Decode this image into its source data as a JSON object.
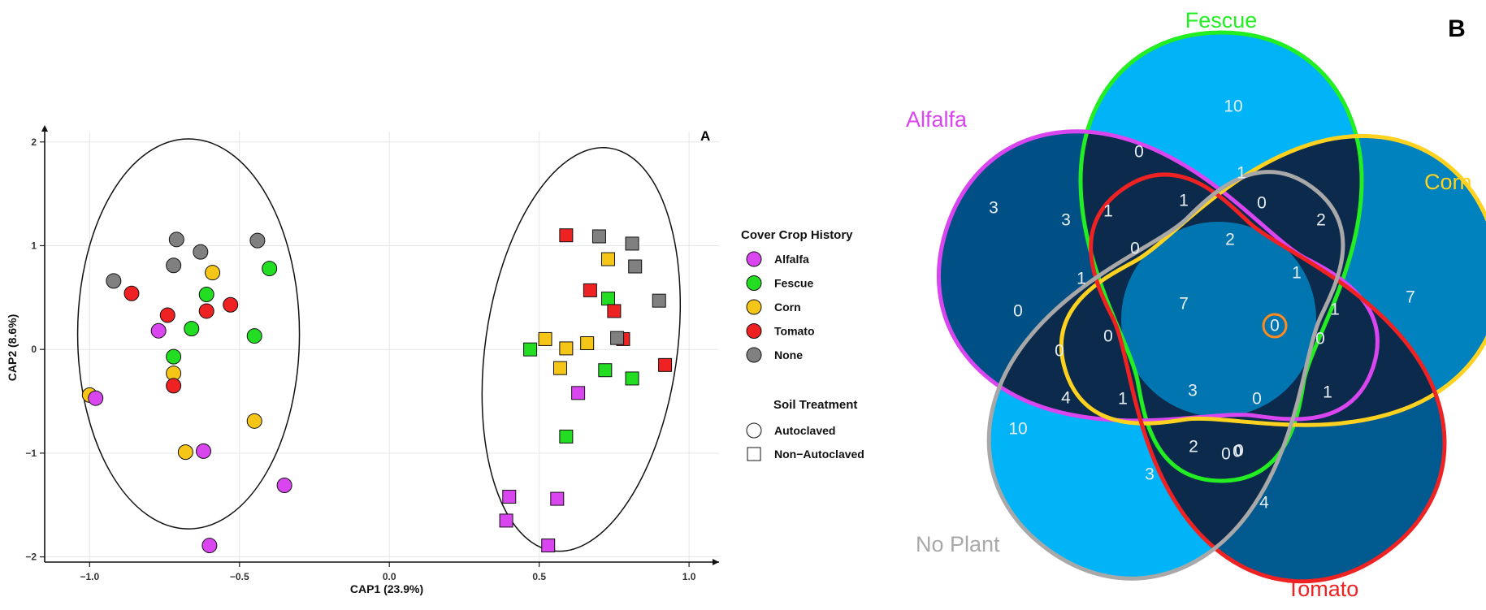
{
  "chart_data": [
    {
      "type": "scatter",
      "panel_label": "A",
      "xlabel": "CAP1 (23.9%)",
      "ylabel": "CAP2 (8.6%)",
      "xlim": [
        -1.15,
        1.1
      ],
      "ylim": [
        -2.05,
        2.1
      ],
      "xticks": [
        -1.0,
        -0.5,
        0.0,
        0.5,
        1.0
      ],
      "xtick_labels": [
        "−1.0",
        "−0.5",
        "0.0",
        "0.5",
        "1.0"
      ],
      "yticks": [
        -2,
        -1,
        0,
        1,
        2
      ],
      "ytick_labels": [
        "−2",
        "−1",
        "0",
        "1",
        "2"
      ],
      "grid": true,
      "legend_color": {
        "title": "Cover Crop History",
        "entries": [
          {
            "name": "Alfalfa",
            "color": "#d946ef"
          },
          {
            "name": "Fescue",
            "color": "#22dd22"
          },
          {
            "name": "Corn",
            "color": "#f5c518"
          },
          {
            "name": "Tomato",
            "color": "#ee2222"
          },
          {
            "name": "None",
            "color": "#808080"
          }
        ]
      },
      "legend_shape": {
        "title": "Soil Treatment",
        "entries": [
          {
            "name": "Autoclaved",
            "shape": "circle"
          },
          {
            "name": "Non−Autoclaved",
            "shape": "square"
          }
        ]
      },
      "ellipses": [
        {
          "name": "Autoclaved",
          "center": [
            -0.67,
            0.15
          ],
          "semi_axes": [
            0.37,
            1.88
          ],
          "rotation_deg": 0
        },
        {
          "name": "Non-Autoclaved",
          "center": [
            0.64,
            0.0
          ],
          "semi_axes": [
            0.32,
            1.96
          ],
          "rotation_deg": 8
        }
      ],
      "points": [
        {
          "x": -0.71,
          "y": 1.06,
          "group": "None",
          "treatment": "Autoclaved"
        },
        {
          "x": -0.63,
          "y": 0.94,
          "group": "None",
          "treatment": "Autoclaved"
        },
        {
          "x": -0.44,
          "y": 1.05,
          "group": "None",
          "treatment": "Autoclaved"
        },
        {
          "x": -0.72,
          "y": 0.81,
          "group": "None",
          "treatment": "Autoclaved"
        },
        {
          "x": -0.92,
          "y": 0.66,
          "group": "None",
          "treatment": "Autoclaved"
        },
        {
          "x": -0.59,
          "y": 0.74,
          "group": "Corn",
          "treatment": "Autoclaved"
        },
        {
          "x": -0.4,
          "y": 0.78,
          "group": "Fescue",
          "treatment": "Autoclaved"
        },
        {
          "x": -0.61,
          "y": 0.53,
          "group": "Fescue",
          "treatment": "Autoclaved"
        },
        {
          "x": -0.86,
          "y": 0.54,
          "group": "Tomato",
          "treatment": "Autoclaved"
        },
        {
          "x": -0.53,
          "y": 0.43,
          "group": "Tomato",
          "treatment": "Autoclaved"
        },
        {
          "x": -0.61,
          "y": 0.37,
          "group": "Tomato",
          "treatment": "Autoclaved"
        },
        {
          "x": -0.74,
          "y": 0.33,
          "group": "Tomato",
          "treatment": "Autoclaved"
        },
        {
          "x": -0.66,
          "y": 0.2,
          "group": "Fescue",
          "treatment": "Autoclaved"
        },
        {
          "x": -0.77,
          "y": 0.18,
          "group": "Alfalfa",
          "treatment": "Autoclaved"
        },
        {
          "x": -0.45,
          "y": 0.13,
          "group": "Fescue",
          "treatment": "Autoclaved"
        },
        {
          "x": -0.72,
          "y": -0.07,
          "group": "Fescue",
          "treatment": "Autoclaved"
        },
        {
          "x": -0.72,
          "y": -0.23,
          "group": "Corn",
          "treatment": "Autoclaved"
        },
        {
          "x": -0.72,
          "y": -0.35,
          "group": "Tomato",
          "treatment": "Autoclaved"
        },
        {
          "x": -1.0,
          "y": -0.44,
          "group": "Corn",
          "treatment": "Autoclaved"
        },
        {
          "x": -0.98,
          "y": -0.47,
          "group": "Alfalfa",
          "treatment": "Autoclaved"
        },
        {
          "x": -0.45,
          "y": -0.69,
          "group": "Corn",
          "treatment": "Autoclaved"
        },
        {
          "x": -0.68,
          "y": -0.99,
          "group": "Corn",
          "treatment": "Autoclaved"
        },
        {
          "x": -0.62,
          "y": -0.98,
          "group": "Alfalfa",
          "treatment": "Autoclaved"
        },
        {
          "x": -0.35,
          "y": -1.31,
          "group": "Alfalfa",
          "treatment": "Autoclaved"
        },
        {
          "x": -0.6,
          "y": -1.89,
          "group": "Alfalfa",
          "treatment": "Autoclaved"
        },
        {
          "x": 0.59,
          "y": 1.1,
          "group": "Tomato",
          "treatment": "Non-Autoclaved"
        },
        {
          "x": 0.7,
          "y": 1.09,
          "group": "None",
          "treatment": "Non-Autoclaved"
        },
        {
          "x": 0.81,
          "y": 1.02,
          "group": "None",
          "treatment": "Non-Autoclaved"
        },
        {
          "x": 0.73,
          "y": 0.87,
          "group": "Corn",
          "treatment": "Non-Autoclaved"
        },
        {
          "x": 0.82,
          "y": 0.8,
          "group": "None",
          "treatment": "Non-Autoclaved"
        },
        {
          "x": 0.67,
          "y": 0.57,
          "group": "Tomato",
          "treatment": "Non-Autoclaved"
        },
        {
          "x": 0.73,
          "y": 0.49,
          "group": "Fescue",
          "treatment": "Non-Autoclaved"
        },
        {
          "x": 0.9,
          "y": 0.47,
          "group": "None",
          "treatment": "Non-Autoclaved"
        },
        {
          "x": 0.75,
          "y": 0.37,
          "group": "Tomato",
          "treatment": "Non-Autoclaved"
        },
        {
          "x": 0.78,
          "y": 0.1,
          "group": "Tomato",
          "treatment": "Non-Autoclaved"
        },
        {
          "x": 0.76,
          "y": 0.11,
          "group": "None",
          "treatment": "Non-Autoclaved"
        },
        {
          "x": 0.52,
          "y": 0.1,
          "group": "Corn",
          "treatment": "Non-Autoclaved"
        },
        {
          "x": 0.66,
          "y": 0.06,
          "group": "Corn",
          "treatment": "Non-Autoclaved"
        },
        {
          "x": 0.59,
          "y": 0.01,
          "group": "Corn",
          "treatment": "Non-Autoclaved"
        },
        {
          "x": 0.47,
          "y": 0.0,
          "group": "Fescue",
          "treatment": "Non-Autoclaved"
        },
        {
          "x": 0.57,
          "y": -0.18,
          "group": "Corn",
          "treatment": "Non-Autoclaved"
        },
        {
          "x": 0.72,
          "y": -0.2,
          "group": "Fescue",
          "treatment": "Non-Autoclaved"
        },
        {
          "x": 0.92,
          "y": -0.15,
          "group": "Tomato",
          "treatment": "Non-Autoclaved"
        },
        {
          "x": 0.81,
          "y": -0.28,
          "group": "Fescue",
          "treatment": "Non-Autoclaved"
        },
        {
          "x": 0.63,
          "y": -0.42,
          "group": "Alfalfa",
          "treatment": "Non-Autoclaved"
        },
        {
          "x": 0.59,
          "y": -0.84,
          "group": "Fescue",
          "treatment": "Non-Autoclaved"
        },
        {
          "x": 0.4,
          "y": -1.42,
          "group": "Alfalfa",
          "treatment": "Non-Autoclaved"
        },
        {
          "x": 0.56,
          "y": -1.44,
          "group": "Alfalfa",
          "treatment": "Non-Autoclaved"
        },
        {
          "x": 0.39,
          "y": -1.65,
          "group": "Alfalfa",
          "treatment": "Non-Autoclaved"
        },
        {
          "x": 0.53,
          "y": -1.89,
          "group": "Alfalfa",
          "treatment": "Non-Autoclaved"
        }
      ]
    },
    {
      "type": "venn",
      "panel_label": "B",
      "sets": [
        {
          "name": "Fescue",
          "color": "#22ee22"
        },
        {
          "name": "Alfalfa",
          "color": "#d946ef"
        },
        {
          "name": "Corn",
          "color": "#ffd21f"
        },
        {
          "name": "Tomato",
          "color": "#ee2222"
        },
        {
          "name": "No Plant",
          "color": "#a8a8a8"
        }
      ],
      "highlighted_value": "0",
      "region_values": [
        "10",
        "3",
        "7",
        "4",
        "10",
        "0",
        "1",
        "1",
        "0",
        "3",
        "1",
        "1",
        "0",
        "2",
        "2",
        "1",
        "1",
        "0",
        "0",
        "7",
        "0",
        "0",
        "0",
        "0",
        "4",
        "1",
        "3",
        "0",
        "1",
        "2",
        "0",
        "3"
      ]
    }
  ]
}
